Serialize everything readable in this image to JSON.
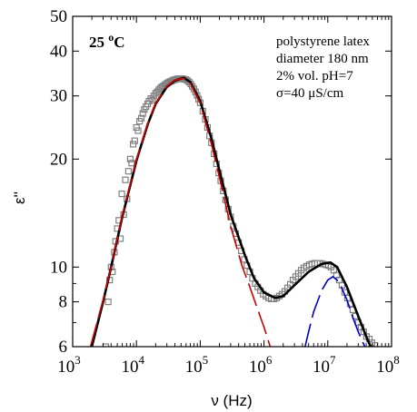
{
  "chart_data": {
    "type": "scatter",
    "xlabel": "ν  (Hz)",
    "ylabel": "ε''",
    "x_scale": "log",
    "y_scale": "log",
    "xlim": [
      1000,
      100000000
    ],
    "ylim": [
      6,
      50
    ],
    "x_ticks": [
      {
        "value": 1000,
        "mantissa": "10",
        "exp": "3"
      },
      {
        "value": 10000,
        "mantissa": "10",
        "exp": "4"
      },
      {
        "value": 100000,
        "mantissa": "10",
        "exp": "5"
      },
      {
        "value": 1000000,
        "mantissa": "10",
        "exp": "6"
      },
      {
        "value": 10000000,
        "mantissa": "10",
        "exp": "7"
      },
      {
        "value": 100000000,
        "mantissa": "10",
        "exp": "8"
      }
    ],
    "y_ticks": [
      {
        "value": 6,
        "label": "6"
      },
      {
        "value": 8,
        "label": "8"
      },
      {
        "value": 10,
        "label": "10"
      },
      {
        "value": 20,
        "label": "20"
      },
      {
        "value": 30,
        "label": "30"
      },
      {
        "value": 40,
        "label": "40"
      },
      {
        "value": 50,
        "label": "50"
      }
    ],
    "temperature_label": {
      "value": "25 ",
      "sup": "o",
      "unit": "C"
    },
    "annotation_lines": [
      "polystyrene latex",
      "diameter 180 nm",
      "2% vol.  pH=7",
      "σ=40 μS/cm"
    ],
    "series": [
      {
        "style": "open-square-markers",
        "color": "#808080",
        "points": [
          [
            3300,
            6.0
          ],
          [
            3600,
            8.0
          ],
          [
            3800,
            9.2
          ],
          [
            4000,
            10.0
          ],
          [
            4200,
            9.7
          ],
          [
            4500,
            11.0
          ],
          [
            4700,
            11.8
          ],
          [
            5000,
            12.8
          ],
          [
            5300,
            13.5
          ],
          [
            5600,
            12.0
          ],
          [
            5900,
            16.0
          ],
          [
            6300,
            14.0
          ],
          [
            6700,
            17.5
          ],
          [
            7100,
            15.5
          ],
          [
            7500,
            18.5
          ],
          [
            8000,
            20.0
          ],
          [
            8400,
            19.5
          ],
          [
            8900,
            22.0
          ],
          [
            9400,
            22.5
          ],
          [
            10000,
            24.5
          ],
          [
            10600,
            24.0
          ],
          [
            11200,
            25.5
          ],
          [
            11900,
            26.0
          ],
          [
            12600,
            26.8
          ],
          [
            13300,
            27.5
          ],
          [
            14100,
            28.0
          ],
          [
            15000,
            28.5
          ],
          [
            15800,
            29.0
          ],
          [
            16800,
            29.5
          ],
          [
            17800,
            29.2
          ],
          [
            18800,
            30.0
          ],
          [
            20000,
            30.5
          ],
          [
            21100,
            30.8
          ],
          [
            22400,
            31.2
          ],
          [
            23700,
            31.5
          ],
          [
            25100,
            31.8
          ],
          [
            26600,
            32.0
          ],
          [
            28200,
            32.3
          ],
          [
            29900,
            32.5
          ],
          [
            31600,
            32.7
          ],
          [
            33500,
            32.9
          ],
          [
            35500,
            33.0
          ],
          [
            37600,
            33.2
          ],
          [
            39800,
            33.3
          ],
          [
            42200,
            33.4
          ],
          [
            44700,
            33.5
          ],
          [
            47300,
            33.5
          ],
          [
            50100,
            33.5
          ],
          [
            53100,
            33.5
          ],
          [
            56200,
            33.4
          ],
          [
            59600,
            33.3
          ],
          [
            63100,
            33.1
          ],
          [
            66800,
            32.8
          ],
          [
            70800,
            32.4
          ],
          [
            75000,
            31.9
          ],
          [
            79400,
            31.4
          ],
          [
            84100,
            30.8
          ],
          [
            89100,
            30.1
          ],
          [
            94400,
            29.4
          ],
          [
            100000,
            28.7
          ],
          [
            110000,
            27.2
          ],
          [
            120000,
            25.8
          ],
          [
            130000,
            24.5
          ],
          [
            140000,
            23.2
          ],
          [
            150000,
            22.2
          ],
          [
            165000,
            20.7
          ],
          [
            180000,
            19.4
          ],
          [
            195000,
            18.3
          ],
          [
            210000,
            17.4
          ],
          [
            230000,
            16.3
          ],
          [
            250000,
            15.4
          ],
          [
            275000,
            14.5
          ],
          [
            300000,
            13.8
          ],
          [
            330000,
            13.0
          ],
          [
            360000,
            12.4
          ],
          [
            400000,
            11.7
          ],
          [
            440000,
            11.1
          ],
          [
            490000,
            10.5
          ],
          [
            540000,
            10.1
          ],
          [
            600000,
            9.7
          ],
          [
            660000,
            9.3
          ],
          [
            730000,
            9.0
          ],
          [
            800000,
            8.8
          ],
          [
            880000,
            8.6
          ],
          [
            970000,
            8.4
          ],
          [
            1070000,
            8.3
          ],
          [
            1180000,
            8.2
          ],
          [
            1300000,
            8.15
          ],
          [
            1430000,
            8.15
          ],
          [
            1580000,
            8.2
          ],
          [
            1740000,
            8.3
          ],
          [
            1920000,
            8.4
          ],
          [
            2120000,
            8.55
          ],
          [
            2340000,
            8.75
          ],
          [
            2580000,
            8.95
          ],
          [
            2850000,
            9.2
          ],
          [
            3140000,
            9.4
          ],
          [
            3460000,
            9.6
          ],
          [
            3820000,
            9.8
          ],
          [
            4210000,
            9.95
          ],
          [
            4640000,
            10.05
          ],
          [
            5120000,
            10.15
          ],
          [
            5650000,
            10.2
          ],
          [
            6230000,
            10.25
          ],
          [
            6870000,
            10.25
          ],
          [
            7580000,
            10.25
          ],
          [
            8360000,
            10.2
          ],
          [
            9220000,
            10.15
          ],
          [
            10200000,
            10.1
          ],
          [
            11200000,
            10.0
          ],
          [
            12400000,
            9.8
          ],
          [
            13700000,
            9.5
          ],
          [
            15100000,
            9.2
          ],
          [
            16700000,
            8.9
          ],
          [
            18400000,
            8.5
          ],
          [
            20300000,
            8.2
          ],
          [
            22400000,
            7.9
          ],
          [
            24700000,
            7.6
          ],
          [
            27200000,
            7.3
          ],
          [
            30000000,
            7.0
          ],
          [
            33200000,
            6.8
          ],
          [
            36700000,
            6.6
          ],
          [
            40500000,
            6.4
          ],
          [
            44700000,
            6.3
          ],
          [
            49300000,
            6.15
          ],
          [
            55000000,
            6.05
          ]
        ]
      },
      {
        "style": "solid-line",
        "color": "#000000",
        "points": [
          [
            2000,
            6.0
          ],
          [
            3000,
            8.0
          ],
          [
            4000,
            10.0
          ],
          [
            6000,
            13.8
          ],
          [
            10000,
            19.8
          ],
          [
            15000,
            25.0
          ],
          [
            20000,
            28.5
          ],
          [
            30000,
            31.8
          ],
          [
            40000,
            33.1
          ],
          [
            55000,
            33.7
          ],
          [
            70000,
            32.8
          ],
          [
            100000,
            29.0
          ],
          [
            150000,
            22.8
          ],
          [
            200000,
            18.6
          ],
          [
            300000,
            14.0
          ],
          [
            500000,
            10.8
          ],
          [
            700000,
            9.3
          ],
          [
            1000000,
            8.5
          ],
          [
            1500000,
            8.2
          ],
          [
            2000000,
            8.3
          ],
          [
            3000000,
            8.9
          ],
          [
            5000000,
            9.7
          ],
          [
            8000000,
            10.2
          ],
          [
            11000000,
            10.3
          ],
          [
            14000000,
            10.0
          ],
          [
            20000000,
            8.8
          ],
          [
            30000000,
            7.3
          ],
          [
            40000000,
            6.4
          ],
          [
            47000000,
            6.0
          ]
        ]
      },
      {
        "style": "long-dash-line",
        "color": "#cc0000",
        "points": [
          [
            1900,
            6.0
          ],
          [
            3000,
            8.1
          ],
          [
            4000,
            10.0
          ],
          [
            6000,
            13.9
          ],
          [
            10000,
            19.9
          ],
          [
            15000,
            25.1
          ],
          [
            20000,
            28.6
          ],
          [
            30000,
            31.9
          ],
          [
            40000,
            33.2
          ],
          [
            55000,
            33.6
          ],
          [
            70000,
            32.6
          ],
          [
            100000,
            28.6
          ],
          [
            150000,
            22.0
          ],
          [
            200000,
            17.8
          ],
          [
            300000,
            13.0
          ],
          [
            450000,
            10.1
          ],
          [
            600000,
            8.8
          ],
          [
            800000,
            7.6
          ],
          [
            1000000,
            6.8
          ],
          [
            1250000,
            6.0
          ]
        ]
      },
      {
        "style": "long-dash-line",
        "color": "#0000cc",
        "points": [
          [
            4400000,
            6.0
          ],
          [
            5000000,
            6.6
          ],
          [
            6000000,
            7.5
          ],
          [
            8000000,
            8.6
          ],
          [
            10000000,
            9.2
          ],
          [
            12000000,
            9.4
          ],
          [
            15000000,
            9.1
          ],
          [
            20000000,
            8.1
          ],
          [
            25000000,
            7.2
          ],
          [
            30000000,
            6.6
          ],
          [
            38000000,
            6.0
          ]
        ]
      }
    ]
  }
}
